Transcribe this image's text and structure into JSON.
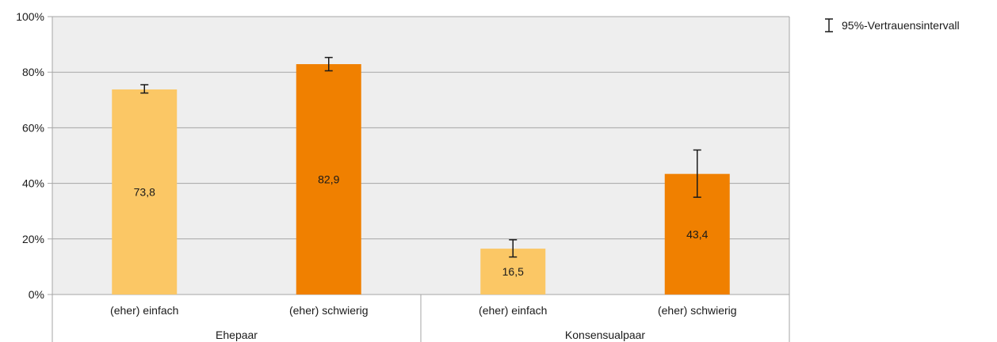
{
  "chart_data": {
    "type": "bar",
    "groups": [
      {
        "name": "Ehepaar",
        "categories": [
          "(eher) einfach",
          "(eher) schwierig"
        ]
      },
      {
        "name": "Konsensualpaar",
        "categories": [
          "(eher) einfach",
          "(eher) schwierig"
        ]
      }
    ],
    "bars": [
      {
        "group": "Ehepaar",
        "category": "(eher) einfach",
        "value": 73.8,
        "label": "73,8",
        "ci": [
          72.5,
          75.5
        ],
        "color": "#FBC765"
      },
      {
        "group": "Ehepaar",
        "category": "(eher) schwierig",
        "value": 82.9,
        "label": "82,9",
        "ci": [
          80.5,
          85.3
        ],
        "color": "#F08000"
      },
      {
        "group": "Konsensualpaar",
        "category": "(eher) einfach",
        "value": 16.5,
        "label": "16,5",
        "ci": [
          13.5,
          19.7
        ],
        "color": "#FBC765"
      },
      {
        "group": "Konsensualpaar",
        "category": "(eher) schwierig",
        "value": 43.4,
        "label": "43,4",
        "ci": [
          35.0,
          52.0
        ],
        "color": "#F08000"
      }
    ],
    "yticks": [
      "0%",
      "20%",
      "40%",
      "60%",
      "80%",
      "100%"
    ],
    "ylim": [
      0,
      100
    ],
    "grid": true,
    "legend": {
      "label": "95%-Vertrauensintervall",
      "position": "top-right"
    },
    "plot_background": "#EEEEEE",
    "gridline_color": "#A6A6A6"
  }
}
